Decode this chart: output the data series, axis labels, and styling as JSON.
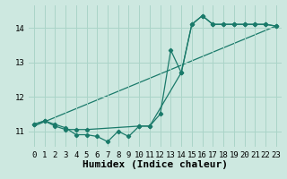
{
  "xlabel": "Humidex (Indice chaleur)",
  "ylabel": "",
  "bg_color": "#cde8e0",
  "grid_color": "#aad4c8",
  "line_color": "#1a7a6a",
  "xlim": [
    -0.5,
    23.5
  ],
  "ylim": [
    10.55,
    14.65
  ],
  "yticks": [
    11,
    12,
    13,
    14
  ],
  "xticks": [
    0,
    1,
    2,
    3,
    4,
    5,
    6,
    7,
    8,
    9,
    10,
    11,
    12,
    13,
    14,
    15,
    16,
    17,
    18,
    19,
    20,
    21,
    22,
    23
  ],
  "series1_x": [
    0,
    1,
    2,
    3,
    4,
    5,
    6,
    7,
    8,
    9,
    10,
    11,
    12,
    13,
    14,
    15,
    16,
    17,
    18,
    19,
    20,
    21,
    22,
    23
  ],
  "series1_y": [
    11.2,
    11.3,
    11.2,
    11.1,
    10.9,
    10.9,
    10.85,
    10.7,
    11.0,
    10.85,
    11.15,
    11.15,
    11.5,
    13.35,
    12.7,
    14.1,
    14.35,
    14.1,
    14.1,
    14.1,
    14.1,
    14.1,
    14.1,
    14.05
  ],
  "series2_x": [
    0,
    23
  ],
  "series2_y": [
    11.15,
    14.05
  ],
  "series3_x": [
    0,
    1,
    2,
    3,
    4,
    5,
    10,
    11,
    14,
    15,
    16,
    17,
    18,
    19,
    20,
    21,
    22,
    23
  ],
  "series3_y": [
    11.2,
    11.3,
    11.15,
    11.05,
    11.05,
    11.05,
    11.15,
    11.15,
    12.7,
    14.1,
    14.35,
    14.1,
    14.1,
    14.1,
    14.1,
    14.1,
    14.1,
    14.05
  ],
  "font_family": "monospace",
  "tick_fontsize": 6.5,
  "xlabel_fontsize": 8
}
